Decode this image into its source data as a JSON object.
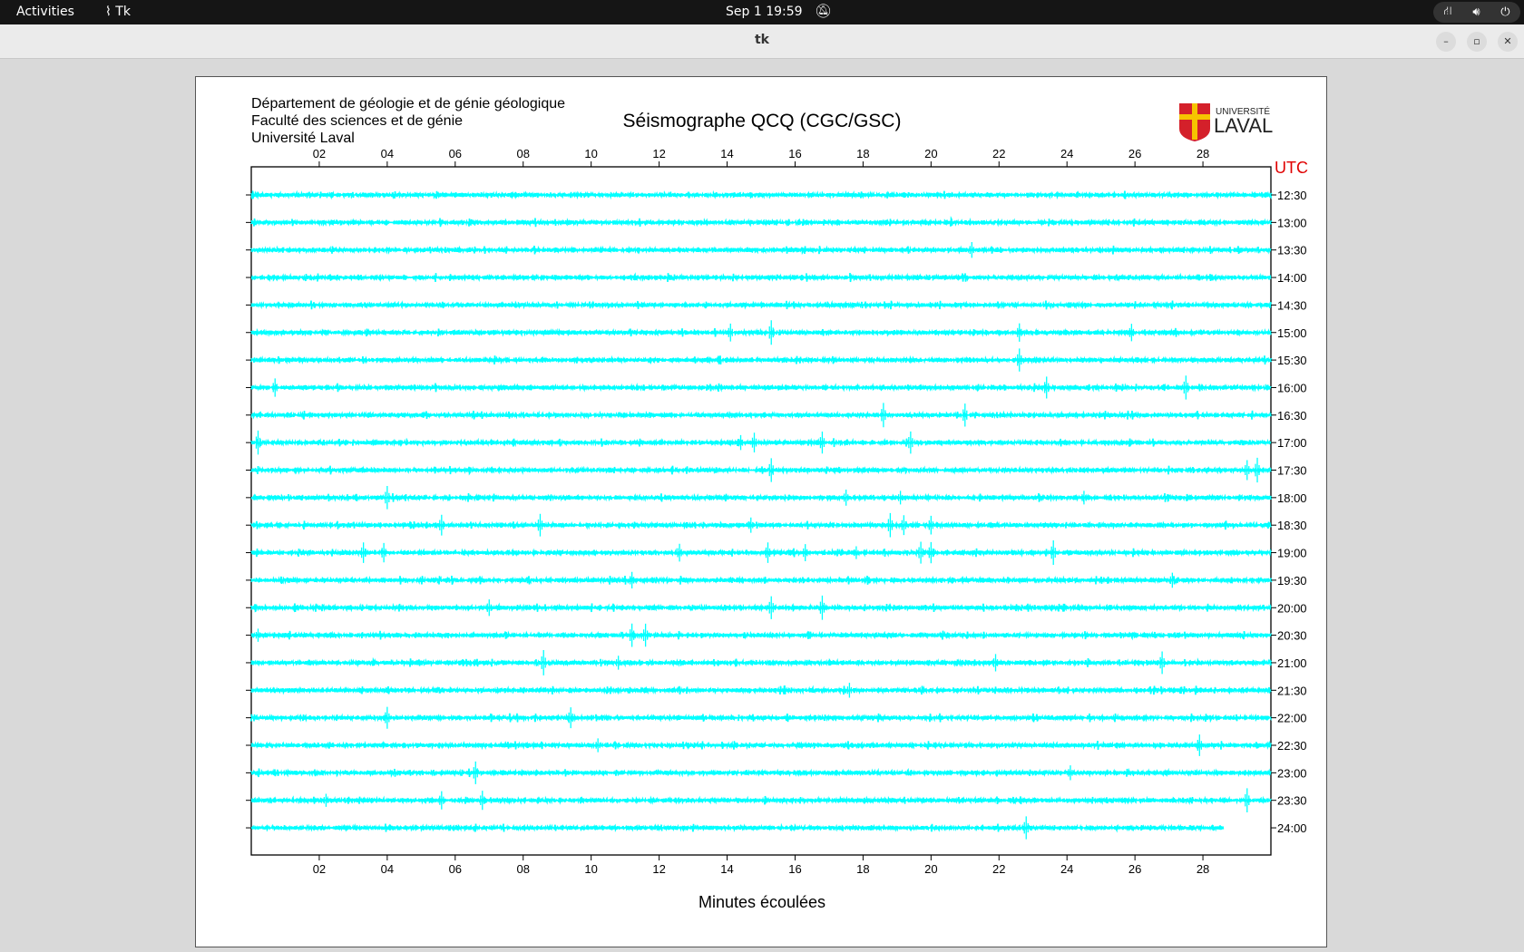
{
  "topbar": {
    "activities": "Activities",
    "app_name": "Tk",
    "clock": "Sep 1  19:59",
    "icons": [
      "network-icon",
      "volume-icon",
      "power-icon"
    ]
  },
  "window": {
    "title": "tk",
    "controls": [
      "minimize",
      "maximize",
      "close"
    ]
  },
  "header": {
    "lines": [
      "Département de géologie et de génie géologique",
      "Faculté des sciences et de génie",
      "Université Laval"
    ],
    "title": "Séismographe QCQ (CGC/GSC)",
    "logo_text": "UNIVERSITÉ LAVAL"
  },
  "chart_data": {
    "type": "line",
    "title": "Séismographe QCQ (CGC/GSC)",
    "xlabel": "Minutes écoulées",
    "ylabel": "UTC",
    "xlim": [
      0,
      30
    ],
    "x_ticks": [
      "02",
      "04",
      "06",
      "08",
      "10",
      "12",
      "14",
      "16",
      "18",
      "20",
      "22",
      "24",
      "26",
      "28"
    ],
    "trace_color": "#00ffff",
    "utc_color": "#e00000",
    "rows": [
      {
        "label": "12:30",
        "events": []
      },
      {
        "label": "13:00",
        "events": []
      },
      {
        "label": "13:30",
        "events": [
          21.2
        ]
      },
      {
        "label": "14:00",
        "events": []
      },
      {
        "label": "14:30",
        "events": []
      },
      {
        "label": "15:00",
        "events": [
          14.1,
          15.3,
          22.6,
          25.9
        ]
      },
      {
        "label": "15:30",
        "events": [
          22.6
        ]
      },
      {
        "label": "16:00",
        "events": [
          0.7,
          23.4,
          27.5
        ]
      },
      {
        "label": "16:30",
        "events": [
          18.6,
          21.0
        ]
      },
      {
        "label": "17:00",
        "events": [
          0.2,
          14.4,
          14.8,
          16.8,
          19.4
        ]
      },
      {
        "label": "17:30",
        "events": [
          15.3,
          29.3,
          29.6
        ]
      },
      {
        "label": "18:00",
        "events": [
          4.0,
          17.5,
          19.1,
          24.5
        ]
      },
      {
        "label": "18:30",
        "events": [
          5.6,
          8.5,
          14.7,
          18.8,
          19.2,
          20.0
        ]
      },
      {
        "label": "19:00",
        "events": [
          3.3,
          3.9,
          12.6,
          15.2,
          16.3,
          17.8,
          19.7,
          20.0,
          23.6
        ]
      },
      {
        "label": "19:30",
        "events": [
          11.2,
          27.1
        ]
      },
      {
        "label": "20:00",
        "events": [
          7.0,
          15.3,
          16.8
        ]
      },
      {
        "label": "20:30",
        "events": [
          0.2,
          11.2,
          11.6
        ]
      },
      {
        "label": "21:00",
        "events": [
          8.6,
          10.8,
          21.9,
          26.8
        ]
      },
      {
        "label": "21:30",
        "events": [
          17.6
        ]
      },
      {
        "label": "22:00",
        "events": [
          4.0,
          9.4
        ]
      },
      {
        "label": "22:30",
        "events": [
          10.2,
          27.9
        ]
      },
      {
        "label": "23:00",
        "events": [
          6.6,
          24.1
        ]
      },
      {
        "label": "23:30",
        "events": [
          2.2,
          5.6,
          6.8,
          29.3
        ]
      },
      {
        "label": "24:00",
        "events": [
          22.8
        ],
        "end": 28.6
      }
    ]
  }
}
